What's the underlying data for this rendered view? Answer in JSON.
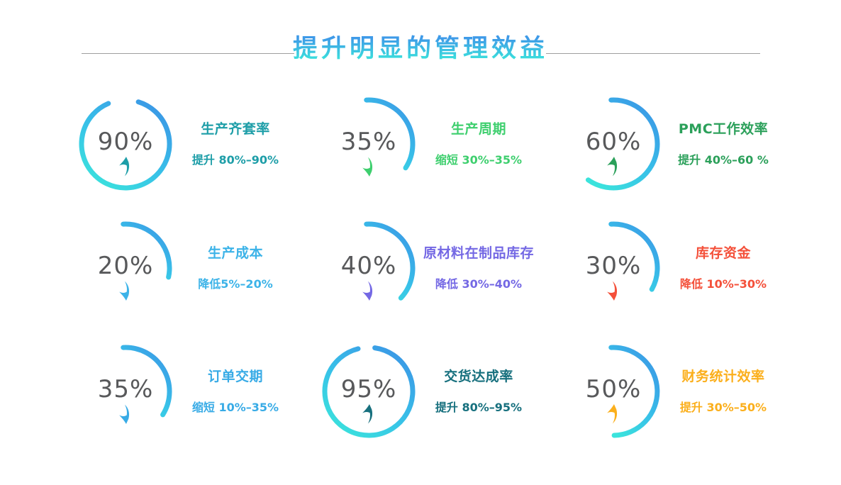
{
  "title": {
    "text": "提升明显的管理效益"
  },
  "colors": {
    "background": "#FFFFFF",
    "title_gradient_top": "#3E9AE8",
    "title_gradient_bottom": "#3BDCDD",
    "divider_line": "#9E9E9E",
    "ring_gradient_top": "#3B96E6",
    "ring_gradient_bottom": "#3BE3DC",
    "percent_text": "#58595B"
  },
  "chart_data": {
    "type": "gauge",
    "value_range": [
      0,
      100
    ],
    "items": [
      {
        "value": 90,
        "percent_label": "90%",
        "metric": "生产齐套率",
        "change": "提升 80%–90%",
        "direction": "up",
        "accent_color": "#1E9EA8",
        "arc_degrees": 320
      },
      {
        "value": 35,
        "percent_label": "35%",
        "metric": "生产周期",
        "change": "缩短 30%–35%",
        "direction": "down",
        "accent_color": "#3ECF6E",
        "arc_degrees": 126
      },
      {
        "value": 60,
        "percent_label": "60%",
        "metric": "PMC工作效率",
        "change": "提升 40%–60 %",
        "direction": "up",
        "accent_color": "#2BA05A",
        "arc_degrees": 218
      },
      {
        "value": 20,
        "percent_label": "20%",
        "metric": "生产成本",
        "change": "降低5%–20%",
        "direction": "down",
        "accent_color": "#3CB3E8",
        "arc_degrees": 105
      },
      {
        "value": 40,
        "percent_label": "40%",
        "metric": "原材料在制品库存",
        "change": "降低 30%–40%",
        "direction": "down",
        "accent_color": "#7468E4",
        "arc_degrees": 136
      },
      {
        "value": 30,
        "percent_label": "30%",
        "metric": "库存资金",
        "change": "降低 10%–30%",
        "direction": "down",
        "accent_color": "#F4503A",
        "arc_degrees": 122
      },
      {
        "value": 35,
        "percent_label": "35%",
        "metric": "订单交期",
        "change": "缩短 10%–35%",
        "direction": "down",
        "accent_color": "#38ABE6",
        "arc_degrees": 125
      },
      {
        "value": 95,
        "percent_label": "95%",
        "metric": "交货达成率",
        "change": "提升 80%–95%",
        "direction": "up",
        "accent_color": "#17707E",
        "arc_degrees": 338
      },
      {
        "value": 50,
        "percent_label": "50%",
        "metric": "财务统计效率",
        "change": "提升 30%–50%",
        "direction": "up",
        "accent_color": "#FBAF1C",
        "arc_degrees": 182
      }
    ]
  }
}
